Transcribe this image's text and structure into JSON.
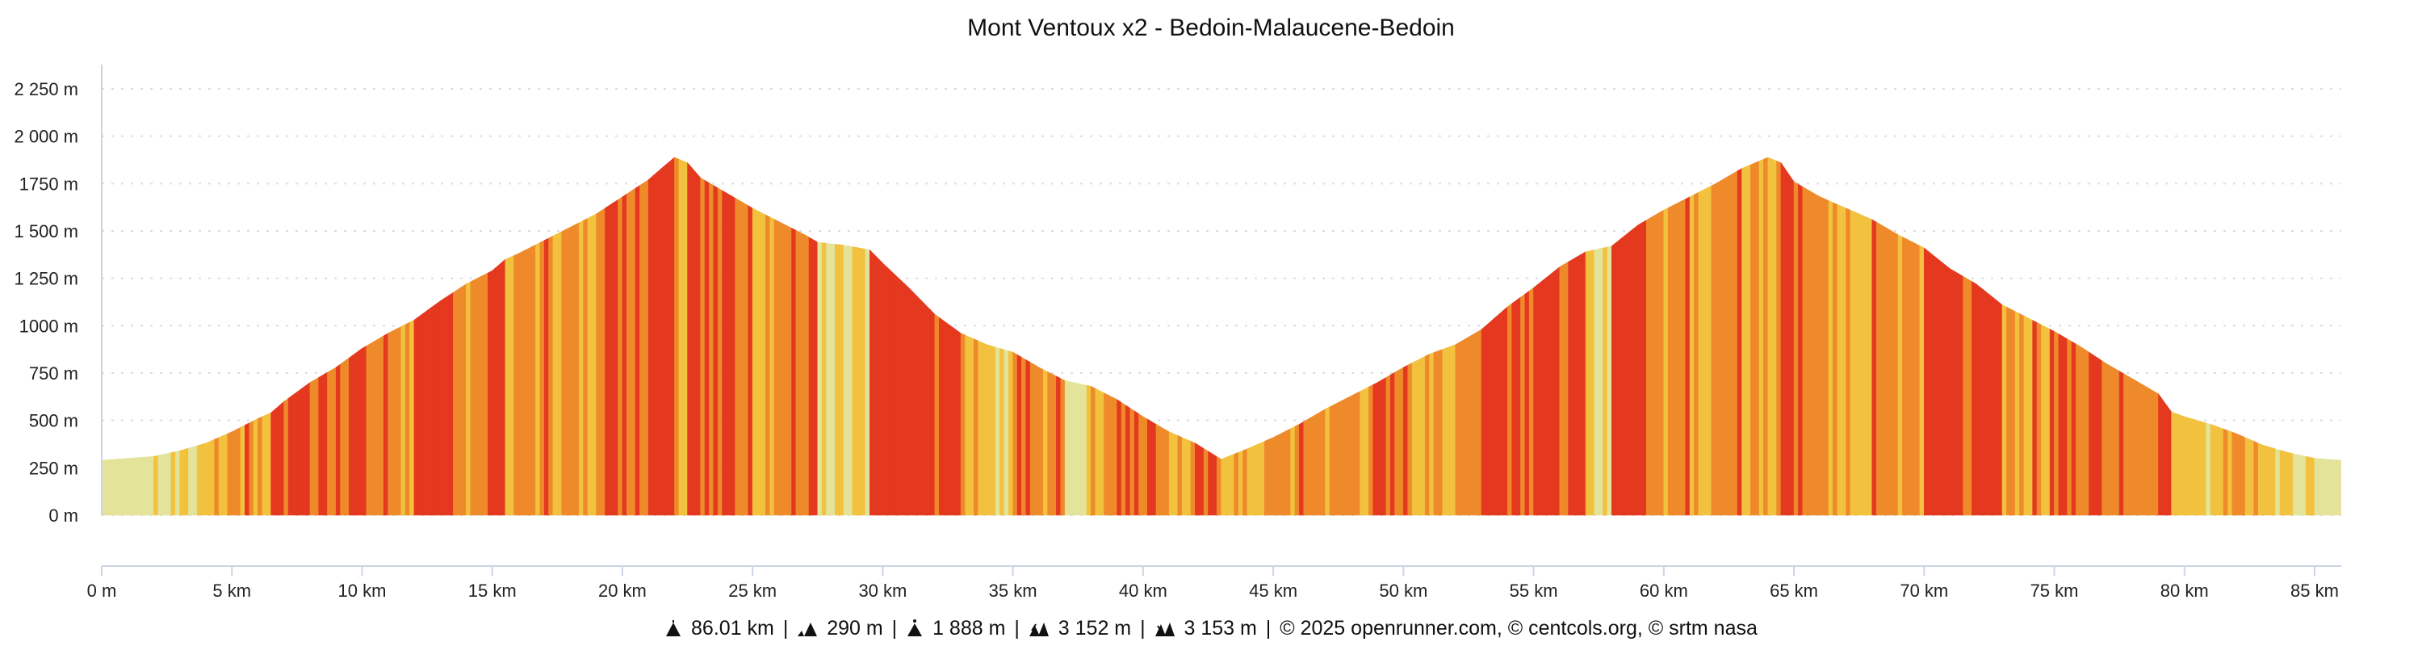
{
  "chart_data": {
    "type": "area",
    "title": "Mont Ventoux x2 - Bedoin-Malaucene-Bedoin",
    "xlabel": "",
    "ylabel": "",
    "xlim": [
      0,
      86.01
    ],
    "ylim": [
      0,
      2250
    ],
    "grid": true,
    "legend": "none",
    "x_ticks": [
      "0 m",
      "5 km",
      "10 km",
      "15 km",
      "20 km",
      "25 km",
      "30 km",
      "35 km",
      "40 km",
      "45 km",
      "50 km",
      "55 km",
      "60 km",
      "65 km",
      "70 km",
      "75 km",
      "80 km",
      "85 km"
    ],
    "x_tick_values": [
      0,
      5,
      10,
      15,
      20,
      25,
      30,
      35,
      40,
      45,
      50,
      55,
      60,
      65,
      70,
      75,
      80,
      85
    ],
    "y_ticks": [
      "0 m",
      "250 m",
      "500 m",
      "750 m",
      "1000 m",
      "1 250 m",
      "1 500 m",
      "1750 m",
      "2 000 m",
      "2 250 m"
    ],
    "y_tick_values": [
      0,
      250,
      500,
      750,
      1000,
      1250,
      1500,
      1750,
      2000,
      2250
    ],
    "slope_colors": {
      "flat": "#e3e39a",
      "moderate": "#f2c13e",
      "steep": "#ee8a2a",
      "very_steep": "#e4391f"
    },
    "points": [
      [
        0,
        290
      ],
      [
        1,
        300
      ],
      [
        2,
        310
      ],
      [
        3,
        340
      ],
      [
        4,
        380
      ],
      [
        5,
        440
      ],
      [
        6,
        510
      ],
      [
        6.5,
        540
      ],
      [
        7,
        600
      ],
      [
        8,
        700
      ],
      [
        9,
        780
      ],
      [
        10,
        880
      ],
      [
        11,
        960
      ],
      [
        12,
        1030
      ],
      [
        13,
        1130
      ],
      [
        14,
        1220
      ],
      [
        15,
        1290
      ],
      [
        15.5,
        1350
      ],
      [
        16,
        1380
      ],
      [
        17,
        1450
      ],
      [
        18,
        1520
      ],
      [
        19,
        1590
      ],
      [
        20,
        1680
      ],
      [
        21,
        1770
      ],
      [
        21.5,
        1830
      ],
      [
        22,
        1888
      ],
      [
        22.5,
        1860
      ],
      [
        23,
        1780
      ],
      [
        24,
        1700
      ],
      [
        25,
        1620
      ],
      [
        26,
        1550
      ],
      [
        27,
        1480
      ],
      [
        27.5,
        1440
      ],
      [
        28.5,
        1425
      ],
      [
        29.5,
        1400
      ],
      [
        30,
        1330
      ],
      [
        31,
        1200
      ],
      [
        32,
        1060
      ],
      [
        33,
        960
      ],
      [
        34,
        900
      ],
      [
        35,
        860
      ],
      [
        36,
        780
      ],
      [
        37,
        710
      ],
      [
        38,
        680
      ],
      [
        39,
        610
      ],
      [
        40,
        520
      ],
      [
        41,
        440
      ],
      [
        42,
        380
      ],
      [
        43,
        295
      ],
      [
        44,
        350
      ],
      [
        45,
        410
      ],
      [
        46,
        480
      ],
      [
        47,
        560
      ],
      [
        48,
        630
      ],
      [
        49,
        700
      ],
      [
        50,
        780
      ],
      [
        51,
        850
      ],
      [
        52,
        900
      ],
      [
        53,
        980
      ],
      [
        54,
        1100
      ],
      [
        55,
        1200
      ],
      [
        56,
        1310
      ],
      [
        57,
        1390
      ],
      [
        58,
        1420
      ],
      [
        59,
        1530
      ],
      [
        60,
        1610
      ],
      [
        61,
        1680
      ],
      [
        62,
        1750
      ],
      [
        63,
        1830
      ],
      [
        64,
        1888
      ],
      [
        64.5,
        1860
      ],
      [
        65,
        1760
      ],
      [
        66,
        1680
      ],
      [
        67,
        1620
      ],
      [
        68,
        1560
      ],
      [
        69,
        1480
      ],
      [
        70,
        1410
      ],
      [
        71,
        1300
      ],
      [
        72,
        1220
      ],
      [
        73,
        1110
      ],
      [
        74,
        1040
      ],
      [
        75,
        970
      ],
      [
        76,
        890
      ],
      [
        77,
        800
      ],
      [
        78,
        720
      ],
      [
        79,
        640
      ],
      [
        79.5,
        545
      ],
      [
        80,
        520
      ],
      [
        81,
        480
      ],
      [
        82,
        430
      ],
      [
        83,
        370
      ],
      [
        84,
        330
      ],
      [
        85,
        300
      ],
      [
        86.01,
        290
      ]
    ]
  },
  "footer": {
    "distance": "86.01 km",
    "min_elevation": "290 m",
    "max_elevation": "1 888 m",
    "ascent": "3 152 m",
    "descent": "3 153 m",
    "credits": "© 2025 openrunner.com, © centcols.org, © srtm nasa",
    "separator": "|"
  }
}
